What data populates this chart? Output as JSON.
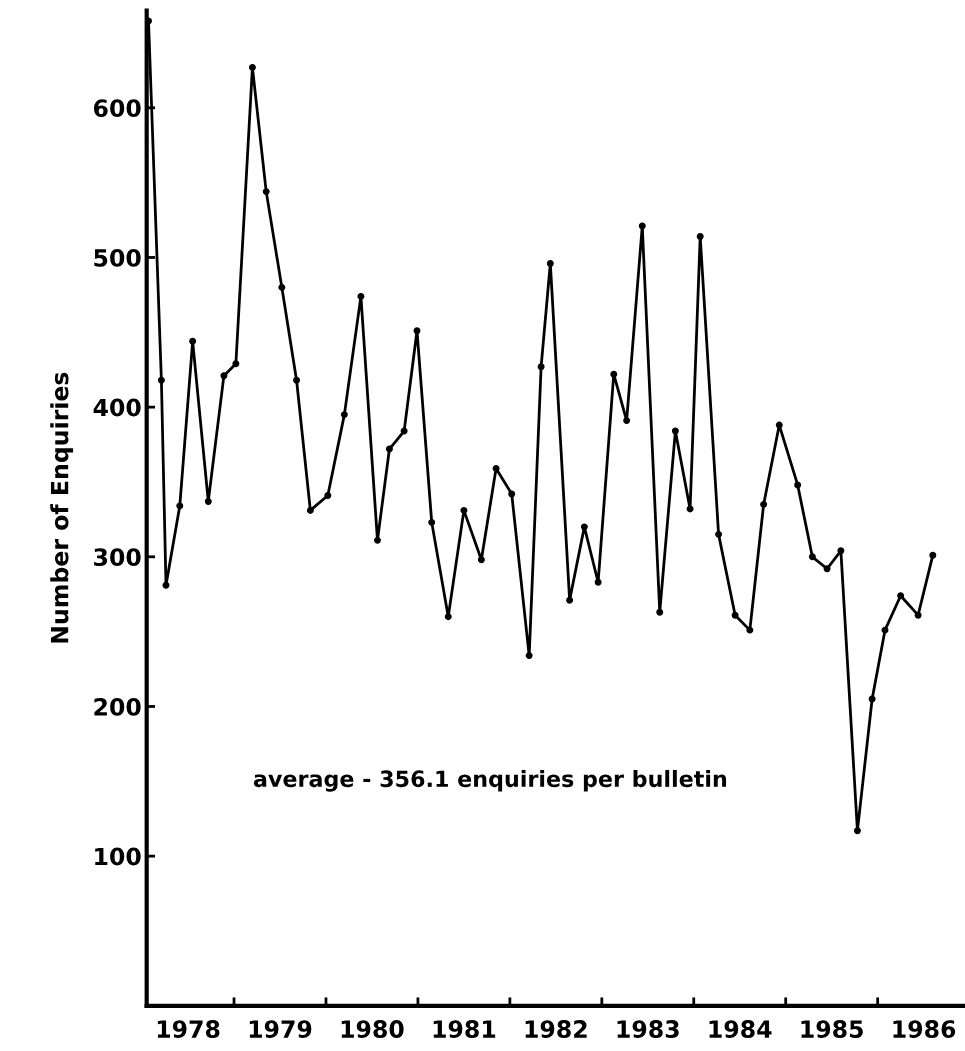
{
  "chart_data": {
    "type": "line",
    "ylabel": "Number of Enquiries",
    "annotations": [
      "average - 356.1 enquiries per bulletin"
    ],
    "x": [
      1977.57,
      1977.71,
      1977.76,
      1977.91,
      1978.05,
      1978.22,
      1978.39,
      1978.52,
      1978.7,
      1978.85,
      1979.02,
      1979.18,
      1979.33,
      1979.52,
      1979.7,
      1979.88,
      1980.06,
      1980.19,
      1980.35,
      1980.49,
      1980.65,
      1980.83,
      1981.0,
      1981.19,
      1981.35,
      1981.52,
      1981.71,
      1981.84,
      1981.94,
      1982.15,
      1982.31,
      1982.46,
      1982.63,
      1982.77,
      1982.94,
      1983.13,
      1983.3,
      1983.46,
      1983.57,
      1983.77,
      1983.95,
      1984.11,
      1984.26,
      1984.43,
      1984.63,
      1984.79,
      1984.95,
      1985.1,
      1985.28,
      1985.44,
      1985.58,
      1985.75,
      1985.94,
      1986.1
    ],
    "series": [
      {
        "color": "#000000",
        "values": [
          658,
          418,
          281,
          334,
          444,
          337,
          421,
          429,
          627,
          544,
          480,
          418,
          331,
          341,
          395,
          474,
          311,
          372,
          384,
          451,
          323,
          260,
          331,
          298,
          359,
          342,
          234,
          427,
          496,
          271,
          320,
          283,
          422,
          391,
          521,
          263,
          384,
          332,
          514,
          315,
          261,
          251,
          335,
          388,
          348,
          300,
          292,
          304,
          117,
          205,
          251,
          274,
          261,
          301
        ]
      }
    ],
    "xlim": [
      1977.55,
      1986.45
    ],
    "xticks": [
      1978,
      1979,
      1980,
      1981,
      1982,
      1983,
      1984,
      1985,
      1986,
      {
        "value": 1978.5,
        "label": null
      },
      {
        "value": 1979.5,
        "label": null
      },
      {
        "value": 1980.5,
        "label": null
      },
      {
        "value": 1981.5,
        "label": null
      },
      {
        "value": 1982.5,
        "label": null
      },
      {
        "value": 1983.5,
        "label": null
      },
      {
        "value": 1984.5,
        "label": null
      },
      {
        "value": 1985.5,
        "label": null
      }
    ],
    "ylim": [
      0,
      665
    ],
    "yticks": [
      100,
      200,
      300,
      400,
      500,
      600
    ],
    "marker": "circle",
    "line_style": "solid",
    "grid": false,
    "legend": false
  }
}
